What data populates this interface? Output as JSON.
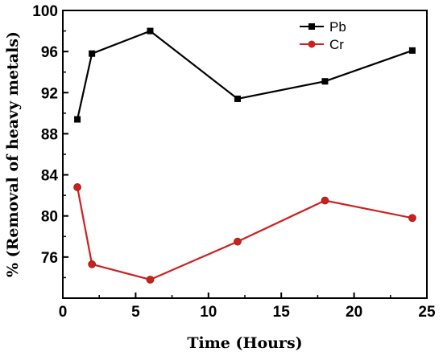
{
  "chart_data": {
    "type": "line",
    "xlabel": "Time (Hours)",
    "ylabel": "% (Removal of heavy metals)",
    "xlim": [
      0,
      25
    ],
    "ylim": [
      72,
      100
    ],
    "xticks": [
      0,
      5,
      10,
      15,
      20,
      25
    ],
    "yticks": [
      76,
      80,
      84,
      88,
      92,
      96,
      100
    ],
    "legend_position": "top-right",
    "grid": false,
    "series": [
      {
        "name": "Pb",
        "color": "#000000",
        "marker": "square",
        "x": [
          1,
          2,
          6,
          12,
          18,
          24
        ],
        "y": [
          89.4,
          95.8,
          98.0,
          91.4,
          93.1,
          96.1
        ]
      },
      {
        "name": "Cr",
        "color": "#cc1f1f",
        "marker": "circle",
        "x": [
          1,
          2,
          6,
          12,
          18,
          24
        ],
        "y": [
          82.8,
          75.3,
          73.8,
          77.5,
          81.5,
          79.8
        ]
      }
    ]
  }
}
